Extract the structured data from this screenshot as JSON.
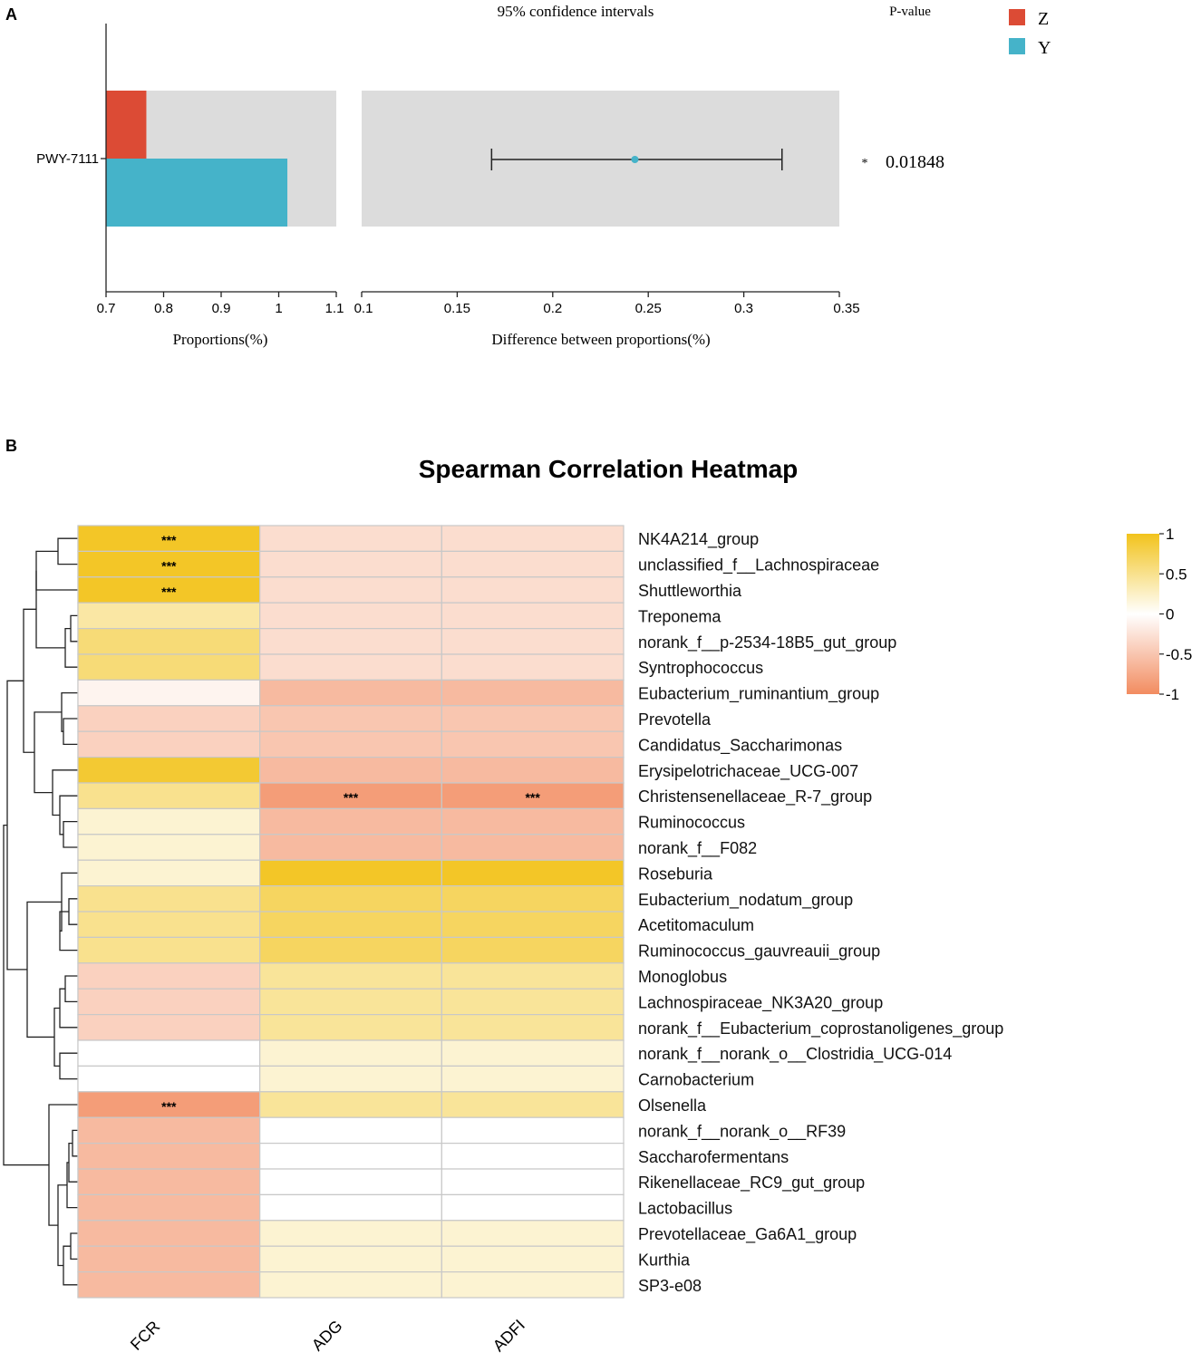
{
  "panel_a": {
    "label": "A",
    "ci_title": "95% confidence intervals",
    "pvalue_title": "P-value",
    "legend": [
      {
        "name": "Z",
        "color": "#dc4b35"
      },
      {
        "name": "Y",
        "color": "#45b3c9"
      }
    ]
  },
  "panel_b": {
    "label": "B",
    "title": "Spearman Correlation Heatmap"
  },
  "chart_data": [
    {
      "type": "bar",
      "categories": [
        "PWY-7111"
      ],
      "series": [
        {
          "name": "Z",
          "values": [
            0.77
          ]
        },
        {
          "name": "Y",
          "values": [
            1.015
          ]
        }
      ],
      "xlabel": "Proportions(%)",
      "xlim": [
        0.7,
        1.1
      ],
      "xticks": [
        "0.7",
        "0.8",
        "0.9",
        "1",
        "1.1"
      ],
      "colors": {
        "Z": "#dc4b35",
        "Y": "#45b3c9",
        "background": "#dcdcdc"
      }
    },
    {
      "type": "scatter",
      "categories": [
        "PWY-7111"
      ],
      "estimate": [
        0.243
      ],
      "ci_lower": [
        0.168
      ],
      "ci_upper": [
        0.32
      ],
      "xlabel": "Difference between proportions(%)",
      "xlim": [
        0.1,
        0.35
      ],
      "xticks": [
        "0.1",
        "0.15",
        "0.2",
        "0.25",
        "0.3",
        "0.35"
      ],
      "p_values": [
        "0.01848"
      ],
      "significance": [
        "*"
      ],
      "colors": {
        "point": "#45b3c9"
      }
    },
    {
      "type": "heatmap",
      "title": "Spearman Correlation Heatmap",
      "columns": [
        "FCR",
        "ADG",
        "ADFI"
      ],
      "rows": [
        "NK4A214_group",
        "unclassified_f__Lachnospiraceae",
        "Shuttleworthia",
        "Treponema",
        "norank_f__p-2534-18B5_gut_group",
        "Syntrophococcus",
        "Eubacterium_ruminantium_group",
        "Prevotella",
        "Candidatus_Saccharimonas",
        "Erysipelotrichaceae_UCG-007",
        "Christensenellaceae_R-7_group",
        "Ruminococcus",
        "norank_f__F082",
        "Roseburia",
        "Eubacterium_nodatum_group",
        "Acetitomaculum",
        "Ruminococcus_gauvreauii_group",
        "Monoglobus",
        "Lachnospiraceae_NK3A20_group",
        "norank_f__Eubacterium_coprostanoligenes_group",
        "norank_f__norank_o__Clostridia_UCG-014",
        "Carnobacterium",
        "Olsenella",
        "norank_f__norank_o__RF39",
        "Saccharofermentans",
        "Rikenellaceae_RC9_gut_group",
        "Lactobacillus",
        "Prevotellaceae_Ga6A1_group",
        "Kurthia",
        "SP3-e08"
      ],
      "values": [
        [
          0.95,
          -0.3,
          -0.3
        ],
        [
          0.95,
          -0.3,
          -0.3
        ],
        [
          0.95,
          -0.3,
          -0.3
        ],
        [
          0.4,
          -0.3,
          -0.3
        ],
        [
          0.6,
          -0.3,
          -0.3
        ],
        [
          0.6,
          -0.3,
          -0.3
        ],
        [
          -0.1,
          -0.6,
          -0.6
        ],
        [
          -0.4,
          -0.5,
          -0.5
        ],
        [
          -0.4,
          -0.5,
          -0.5
        ],
        [
          0.9,
          -0.6,
          -0.6
        ],
        [
          0.5,
          -0.85,
          -0.85
        ],
        [
          0.2,
          -0.6,
          -0.6
        ],
        [
          0.2,
          -0.6,
          -0.6
        ],
        [
          0.2,
          0.95,
          0.95
        ],
        [
          0.5,
          0.7,
          0.7
        ],
        [
          0.5,
          0.7,
          0.7
        ],
        [
          0.5,
          0.7,
          0.7
        ],
        [
          -0.4,
          0.45,
          0.45
        ],
        [
          -0.4,
          0.45,
          0.45
        ],
        [
          -0.4,
          0.45,
          0.45
        ],
        [
          0.0,
          0.2,
          0.2
        ],
        [
          0.0,
          0.2,
          0.2
        ],
        [
          -0.85,
          0.45,
          0.45
        ],
        [
          -0.6,
          0.0,
          0.0
        ],
        [
          -0.6,
          0.0,
          0.0
        ],
        [
          -0.6,
          0.0,
          0.0
        ],
        [
          -0.6,
          0.0,
          0.0
        ],
        [
          -0.6,
          0.2,
          0.2
        ],
        [
          -0.6,
          0.2,
          0.2
        ],
        [
          -0.6,
          0.2,
          0.2
        ]
      ],
      "significance": [
        [
          "***",
          "",
          ""
        ],
        [
          "***",
          "",
          ""
        ],
        [
          "***",
          "",
          ""
        ],
        [
          "",
          "",
          ""
        ],
        [
          "",
          "",
          ""
        ],
        [
          "",
          "",
          ""
        ],
        [
          "",
          "",
          ""
        ],
        [
          "",
          "",
          ""
        ],
        [
          "",
          "",
          ""
        ],
        [
          "",
          "",
          ""
        ],
        [
          "",
          "***",
          "***"
        ],
        [
          "",
          "",
          ""
        ],
        [
          "",
          "",
          ""
        ],
        [
          "",
          "",
          ""
        ],
        [
          "",
          "",
          ""
        ],
        [
          "",
          "",
          ""
        ],
        [
          "",
          "",
          ""
        ],
        [
          "",
          "",
          ""
        ],
        [
          "",
          "",
          ""
        ],
        [
          "",
          "",
          ""
        ],
        [
          "",
          "",
          ""
        ],
        [
          "",
          "",
          ""
        ],
        [
          "***",
          "",
          ""
        ],
        [
          "",
          "",
          ""
        ],
        [
          "",
          "",
          ""
        ],
        [
          "",
          "",
          ""
        ],
        [
          "",
          "",
          ""
        ],
        [
          "",
          "",
          ""
        ],
        [
          "",
          "",
          ""
        ],
        [
          "",
          "",
          ""
        ]
      ],
      "colorbar": {
        "ticks": [
          "1",
          "0.5",
          "0",
          "-0.5",
          "-1"
        ],
        "range": [
          -1,
          1
        ],
        "colors": {
          "high": "#f2c31c",
          "mid": "#ffffff",
          "low": "#f28c60"
        }
      }
    }
  ]
}
